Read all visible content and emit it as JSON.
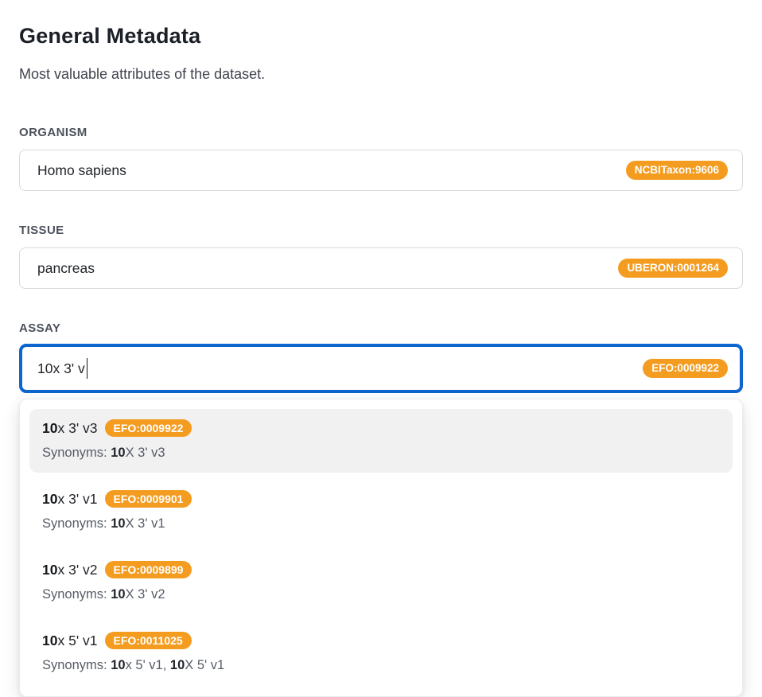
{
  "page": {
    "title": "General Metadata",
    "subtitle": "Most valuable attributes of the dataset."
  },
  "colors": {
    "badge_orange": "#f49c20",
    "focus_blue": "#0d65d0"
  },
  "fields": {
    "organism": {
      "label": "ORGANISM",
      "value": "Homo sapiens",
      "badge": "NCBITaxon:9606"
    },
    "tissue": {
      "label": "TISSUE",
      "value": "pancreas",
      "badge": "UBERON:0001264"
    },
    "assay": {
      "label": "ASSAY",
      "value": "10x 3' v",
      "badge": "EFO:0009922"
    }
  },
  "dropdown": {
    "options": [
      {
        "match": "10",
        "rest": "x 3' v3",
        "badge": "EFO:0009922",
        "syn_label": "Synonyms: ",
        "syn": [
          {
            "match": "10",
            "rest": "X 3' v3"
          }
        ]
      },
      {
        "match": "10",
        "rest": "x 3' v1",
        "badge": "EFO:0009901",
        "syn_label": "Synonyms: ",
        "syn": [
          {
            "match": "10",
            "rest": "X 3' v1"
          }
        ]
      },
      {
        "match": "10",
        "rest": "x 3' v2",
        "badge": "EFO:0009899",
        "syn_label": "Synonyms: ",
        "syn": [
          {
            "match": "10",
            "rest": "X 3' v2"
          }
        ]
      },
      {
        "match": "10",
        "rest": "x 5' v1",
        "badge": "EFO:0011025",
        "syn_label": "Synonyms: ",
        "syn": [
          {
            "match": "10",
            "rest": "x 5' v1, "
          },
          {
            "match": "10",
            "rest": "X 5' v1"
          }
        ]
      }
    ]
  }
}
